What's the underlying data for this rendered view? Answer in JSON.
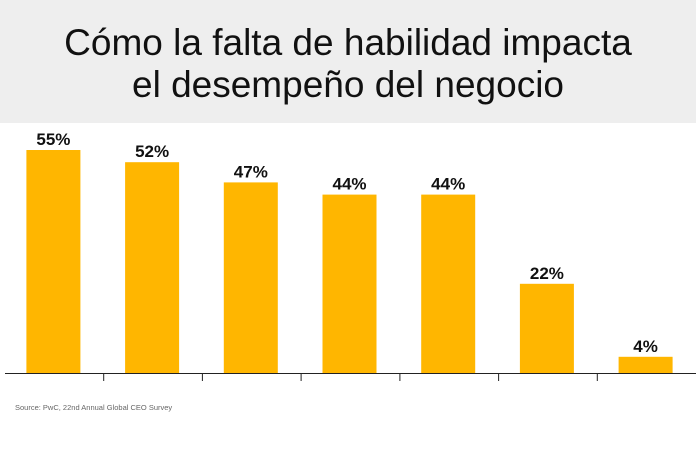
{
  "title": {
    "line1": "Cómo la falta de habilidad impacta",
    "line2": "el desempeño del negocio"
  },
  "source": "Source: PwC, 22nd Annual Global CEO Survey",
  "colors": {
    "bar": "#FFB600",
    "axis": "#222222",
    "title_band": "#EEEEEE"
  },
  "chart_data": {
    "type": "bar",
    "categories": [
      "",
      "",
      "",
      "",
      "",
      "",
      ""
    ],
    "values": [
      55,
      52,
      47,
      44,
      44,
      22,
      4
    ],
    "data_labels": [
      "55%",
      "52%",
      "47%",
      "44%",
      "44%",
      "22%",
      "4%"
    ],
    "ylim": [
      0,
      55
    ],
    "grid": false,
    "legend": "none",
    "title": "Cómo la falta de habilidad impacta el desempeño del negocio",
    "xlabel": "",
    "ylabel": ""
  }
}
